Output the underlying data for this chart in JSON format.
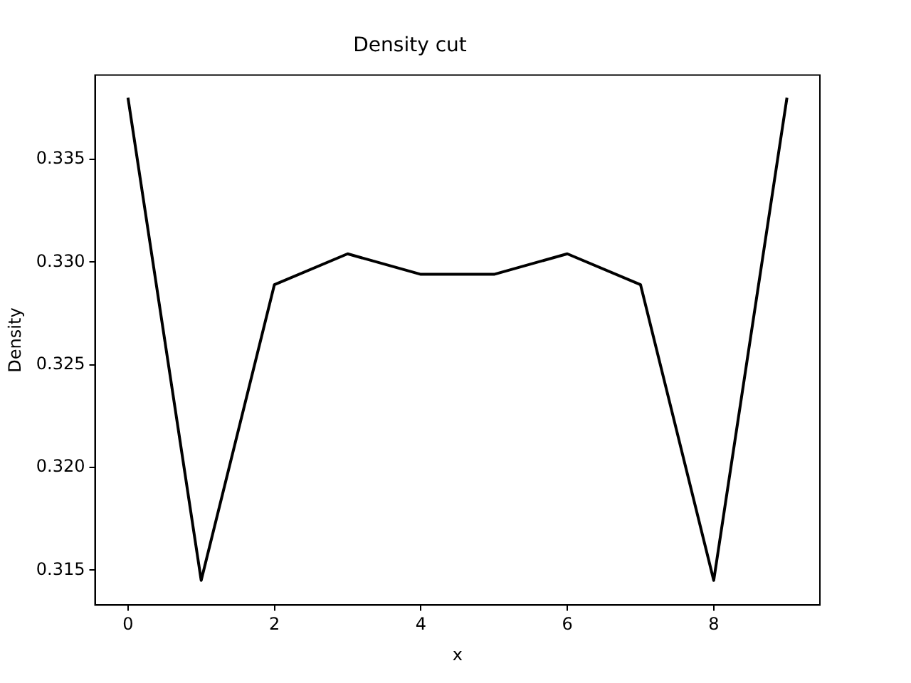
{
  "chart_data": {
    "type": "line",
    "title": "Density cut",
    "xlabel": "x",
    "ylabel": "Density",
    "x": [
      0,
      1,
      2,
      3,
      4,
      5,
      6,
      7,
      8,
      9
    ],
    "series": [
      {
        "color": "#000000",
        "values": [
          0.338,
          0.3145,
          0.3289,
          0.3304,
          0.3294,
          0.3294,
          0.3304,
          0.3289,
          0.3145,
          0.338
        ]
      }
    ],
    "xlim": [
      -0.45,
      9.45
    ],
    "xticks": [
      0,
      2,
      4,
      6,
      8
    ],
    "ylim": [
      0.3133,
      0.3391
    ],
    "yticks": [
      0.315,
      {
        "value": 0.32,
        "label": "0.320"
      },
      0.325,
      {
        "value": 0.33,
        "label": "0.330"
      },
      0.335
    ],
    "grid": false,
    "legend": false,
    "marker": "none",
    "line_style": "solid"
  }
}
